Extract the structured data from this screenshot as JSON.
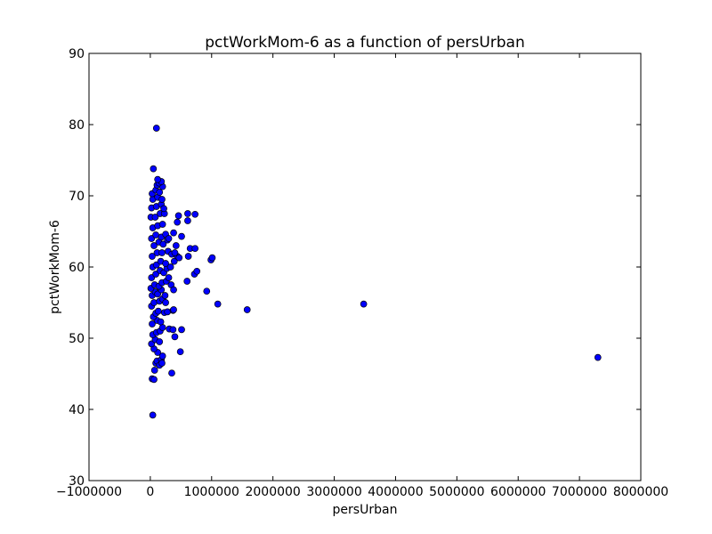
{
  "chart_data": {
    "type": "scatter",
    "title": "pctWorkMom-6 as a function of persUrban",
    "xlabel": "persUrban",
    "ylabel": "pctWorkMom-6",
    "xlim": [
      -1000000,
      8000000
    ],
    "ylim": [
      30,
      90
    ],
    "xticks": [
      -1000000,
      0,
      1000000,
      2000000,
      3000000,
      4000000,
      5000000,
      6000000,
      7000000,
      8000000
    ],
    "xtick_labels": [
      "−1000000",
      "0",
      "1000000",
      "2000000",
      "3000000",
      "4000000",
      "5000000",
      "6000000",
      "7000000",
      "8000000"
    ],
    "yticks": [
      30,
      40,
      50,
      60,
      70,
      80,
      90
    ],
    "ytick_labels": [
      "30",
      "40",
      "50",
      "60",
      "70",
      "80",
      "90"
    ],
    "grid": false,
    "marker_color": "#0000ff",
    "marker_edge_color": "#000000",
    "points": [
      [
        100000,
        79.5
      ],
      [
        50000,
        73.8
      ],
      [
        40000,
        39.2
      ],
      [
        30000,
        44.3
      ],
      [
        60000,
        44.2
      ],
      [
        70000,
        45.5
      ],
      [
        90000,
        46.5
      ],
      [
        110000,
        46.8
      ],
      [
        150000,
        46.2
      ],
      [
        180000,
        47.0
      ],
      [
        200000,
        47.5
      ],
      [
        120000,
        48.0
      ],
      [
        60000,
        48.5
      ],
      [
        20000,
        49.2
      ],
      [
        80000,
        49.8
      ],
      [
        150000,
        49.5
      ],
      [
        40000,
        50.5
      ],
      [
        100000,
        50.8
      ],
      [
        160000,
        51.0
      ],
      [
        200000,
        51.5
      ],
      [
        30000,
        52.0
      ],
      [
        110000,
        52.5
      ],
      [
        170000,
        52.3
      ],
      [
        50000,
        53.0
      ],
      [
        90000,
        53.5
      ],
      [
        130000,
        53.8
      ],
      [
        230000,
        53.6
      ],
      [
        280000,
        53.7
      ],
      [
        370000,
        53.9
      ],
      [
        380000,
        54.0
      ],
      [
        20000,
        54.5
      ],
      [
        60000,
        55.0
      ],
      [
        150000,
        55.2
      ],
      [
        200000,
        55.5
      ],
      [
        250000,
        55.0
      ],
      [
        30000,
        56.0
      ],
      [
        80000,
        56.5
      ],
      [
        120000,
        56.2
      ],
      [
        180000,
        56.8
      ],
      [
        240000,
        56.0
      ],
      [
        10000,
        57.0
      ],
      [
        70000,
        57.5
      ],
      [
        140000,
        57.3
      ],
      [
        190000,
        57.8
      ],
      [
        340000,
        57.5
      ],
      [
        380000,
        56.8
      ],
      [
        920000,
        56.6
      ],
      [
        1100000,
        54.8
      ],
      [
        1580000,
        54.0
      ],
      [
        3480000,
        54.8
      ],
      [
        7300000,
        47.3
      ],
      [
        310000,
        51.3
      ],
      [
        370000,
        51.2
      ],
      [
        510000,
        51.2
      ],
      [
        400000,
        50.2
      ],
      [
        490000,
        48.1
      ],
      [
        350000,
        45.1
      ],
      [
        190000,
        46.5
      ],
      [
        260000,
        58.0
      ],
      [
        300000,
        58.5
      ],
      [
        20000,
        58.5
      ],
      [
        90000,
        59.0
      ],
      [
        160000,
        59.5
      ],
      [
        220000,
        59.2
      ],
      [
        270000,
        59.8
      ],
      [
        600000,
        58.0
      ],
      [
        720000,
        59.0
      ],
      [
        760000,
        59.4
      ],
      [
        40000,
        60.0
      ],
      [
        100000,
        60.3
      ],
      [
        170000,
        60.8
      ],
      [
        250000,
        60.5
      ],
      [
        330000,
        60.0
      ],
      [
        390000,
        60.8
      ],
      [
        440000,
        61.5
      ],
      [
        620000,
        61.5
      ],
      [
        990000,
        61.0
      ],
      [
        1010000,
        61.3
      ],
      [
        30000,
        61.5
      ],
      [
        110000,
        62.0
      ],
      [
        190000,
        62.0
      ],
      [
        290000,
        62.2
      ],
      [
        350000,
        61.8
      ],
      [
        400000,
        62.0
      ],
      [
        470000,
        61.3
      ],
      [
        650000,
        62.6
      ],
      [
        730000,
        62.6
      ],
      [
        60000,
        63.0
      ],
      [
        140000,
        63.5
      ],
      [
        210000,
        63.2
      ],
      [
        280000,
        63.8
      ],
      [
        420000,
        63.0
      ],
      [
        20000,
        64.0
      ],
      [
        90000,
        64.5
      ],
      [
        180000,
        64.2
      ],
      [
        250000,
        64.6
      ],
      [
        300000,
        64.0
      ],
      [
        380000,
        64.8
      ],
      [
        510000,
        64.3
      ],
      [
        40000,
        65.5
      ],
      [
        120000,
        65.8
      ],
      [
        200000,
        66.0
      ],
      [
        440000,
        66.3
      ],
      [
        460000,
        67.2
      ],
      [
        610000,
        67.5
      ],
      [
        610000,
        66.5
      ],
      [
        730000,
        67.4
      ],
      [
        10000,
        67.0
      ],
      [
        80000,
        67.0
      ],
      [
        160000,
        67.5
      ],
      [
        230000,
        67.5
      ],
      [
        20000,
        68.3
      ],
      [
        100000,
        68.5
      ],
      [
        180000,
        68.8
      ],
      [
        220000,
        68.2
      ],
      [
        40000,
        69.5
      ],
      [
        120000,
        69.8
      ],
      [
        190000,
        69.5
      ],
      [
        30000,
        70.3
      ],
      [
        90000,
        70.8
      ],
      [
        150000,
        70.5
      ],
      [
        110000,
        71.5
      ],
      [
        200000,
        71.3
      ],
      [
        140000,
        71.8
      ],
      [
        180000,
        72.0
      ],
      [
        120000,
        72.3
      ]
    ]
  }
}
